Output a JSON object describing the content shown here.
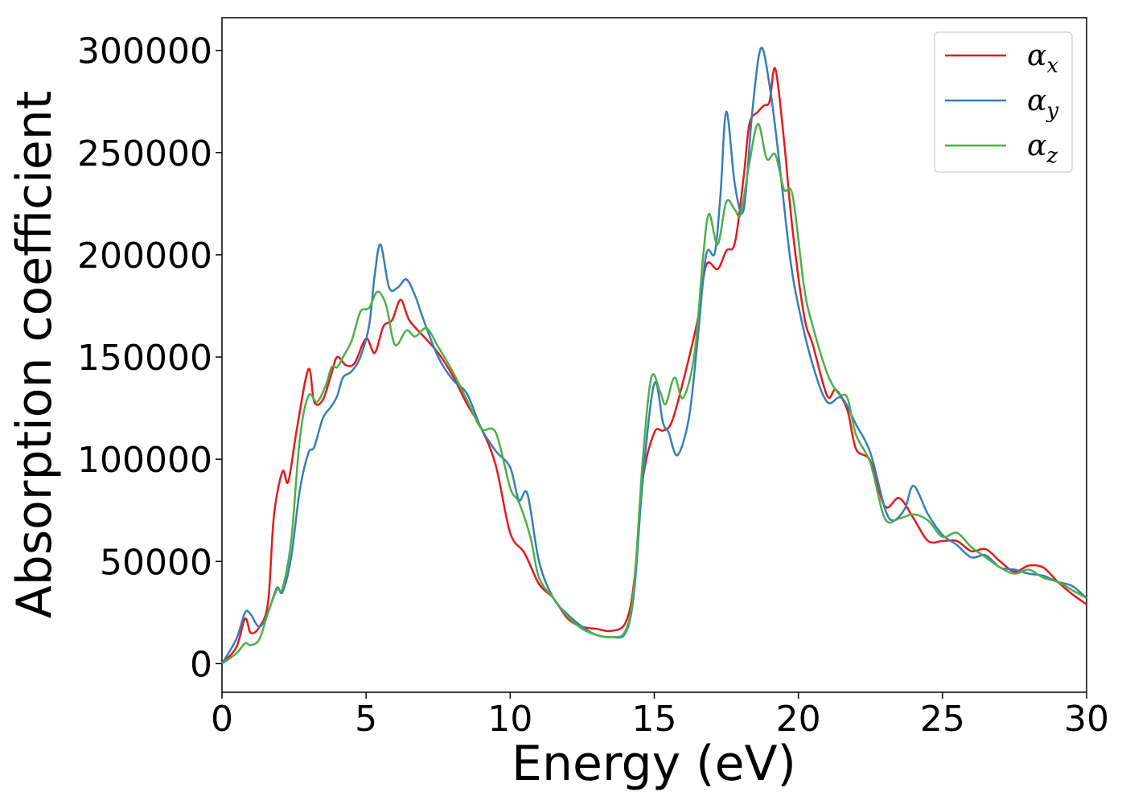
{
  "chart_data": {
    "type": "line",
    "title": "",
    "xlabel": "Energy (eV)",
    "ylabel": "Absorption coefficient",
    "xlim": [
      0,
      30
    ],
    "ylim": [
      -14000,
      316000
    ],
    "xticks": [
      0,
      5,
      10,
      15,
      20,
      25,
      30
    ],
    "yticks": [
      0,
      50000,
      100000,
      150000,
      200000,
      250000,
      300000
    ],
    "grid": false,
    "legend_position": "top-right",
    "series": [
      {
        "name": "α",
        "subscript": "x",
        "color": "#e41a1c",
        "points": [
          [
            0,
            0
          ],
          [
            0.5,
            8000
          ],
          [
            0.8,
            22000
          ],
          [
            1.0,
            15000
          ],
          [
            1.3,
            18000
          ],
          [
            1.6,
            30000
          ],
          [
            1.8,
            72000
          ],
          [
            2.1,
            94000
          ],
          [
            2.3,
            89000
          ],
          [
            2.6,
            115000
          ],
          [
            3.0,
            144000
          ],
          [
            3.2,
            128000
          ],
          [
            3.5,
            129000
          ],
          [
            3.8,
            142000
          ],
          [
            4.0,
            150000
          ],
          [
            4.3,
            146000
          ],
          [
            4.6,
            147000
          ],
          [
            5.0,
            159000
          ],
          [
            5.3,
            152000
          ],
          [
            5.6,
            165000
          ],
          [
            5.9,
            168000
          ],
          [
            6.2,
            178000
          ],
          [
            6.5,
            168000
          ],
          [
            7.0,
            160000
          ],
          [
            7.5,
            152000
          ],
          [
            8.0,
            141000
          ],
          [
            8.5,
            127000
          ],
          [
            9.0,
            115000
          ],
          [
            9.5,
            97000
          ],
          [
            10.0,
            64000
          ],
          [
            10.5,
            54000
          ],
          [
            11.0,
            39000
          ],
          [
            11.5,
            32000
          ],
          [
            12.0,
            22000
          ],
          [
            12.5,
            18000
          ],
          [
            13.0,
            17000
          ],
          [
            13.5,
            16000
          ],
          [
            14.0,
            20000
          ],
          [
            14.3,
            40000
          ],
          [
            14.6,
            90000
          ],
          [
            15.0,
            113000
          ],
          [
            15.3,
            114000
          ],
          [
            15.6,
            118000
          ],
          [
            16.0,
            138000
          ],
          [
            16.5,
            168000
          ],
          [
            16.8,
            195000
          ],
          [
            17.2,
            193000
          ],
          [
            17.5,
            202000
          ],
          [
            17.8,
            206000
          ],
          [
            18.1,
            238000
          ],
          [
            18.3,
            264000
          ],
          [
            18.6,
            270000
          ],
          [
            18.8,
            273000
          ],
          [
            19.0,
            275000
          ],
          [
            19.2,
            291000
          ],
          [
            19.5,
            256000
          ],
          [
            19.8,
            212000
          ],
          [
            20.2,
            170000
          ],
          [
            20.5,
            156000
          ],
          [
            21.0,
            131000
          ],
          [
            21.3,
            134000
          ],
          [
            21.7,
            124000
          ],
          [
            22.0,
            105000
          ],
          [
            22.5,
            99000
          ],
          [
            23.0,
            77000
          ],
          [
            23.5,
            81000
          ],
          [
            24.0,
            71000
          ],
          [
            24.5,
            60000
          ],
          [
            25.0,
            60000
          ],
          [
            25.5,
            60000
          ],
          [
            26.0,
            55000
          ],
          [
            26.5,
            56000
          ],
          [
            27.0,
            50000
          ],
          [
            27.5,
            45000
          ],
          [
            28.0,
            48000
          ],
          [
            28.5,
            47000
          ],
          [
            29.0,
            40000
          ],
          [
            29.5,
            34000
          ],
          [
            30.0,
            29000
          ]
        ]
      },
      {
        "name": "α",
        "subscript": "y",
        "color": "#377eb8",
        "points": [
          [
            0,
            0
          ],
          [
            0.5,
            12000
          ],
          [
            0.8,
            25000
          ],
          [
            1.0,
            24000
          ],
          [
            1.3,
            18000
          ],
          [
            1.6,
            25000
          ],
          [
            1.9,
            37000
          ],
          [
            2.1,
            35000
          ],
          [
            2.4,
            52000
          ],
          [
            2.7,
            85000
          ],
          [
            3.0,
            103000
          ],
          [
            3.2,
            106000
          ],
          [
            3.5,
            120000
          ],
          [
            3.8,
            126000
          ],
          [
            4.0,
            131000
          ],
          [
            4.2,
            140000
          ],
          [
            4.5,
            143000
          ],
          [
            4.8,
            150000
          ],
          [
            5.1,
            165000
          ],
          [
            5.3,
            190000
          ],
          [
            5.5,
            205000
          ],
          [
            5.8,
            184000
          ],
          [
            6.1,
            184000
          ],
          [
            6.4,
            188000
          ],
          [
            6.7,
            180000
          ],
          [
            7.0,
            168000
          ],
          [
            7.5,
            150000
          ],
          [
            8.0,
            139000
          ],
          [
            8.5,
            132000
          ],
          [
            9.0,
            115000
          ],
          [
            9.5,
            104000
          ],
          [
            10.0,
            96000
          ],
          [
            10.3,
            80000
          ],
          [
            10.6,
            83000
          ],
          [
            11.0,
            50000
          ],
          [
            11.5,
            32000
          ],
          [
            12.0,
            24000
          ],
          [
            12.5,
            18000
          ],
          [
            13.0,
            14000
          ],
          [
            13.5,
            13000
          ],
          [
            14.0,
            15000
          ],
          [
            14.3,
            35000
          ],
          [
            14.6,
            90000
          ],
          [
            15.0,
            137000
          ],
          [
            15.3,
            118000
          ],
          [
            15.5,
            113000
          ],
          [
            15.8,
            102000
          ],
          [
            16.2,
            120000
          ],
          [
            16.5,
            158000
          ],
          [
            16.8,
            200000
          ],
          [
            17.1,
            201000
          ],
          [
            17.3,
            230000
          ],
          [
            17.5,
            270000
          ],
          [
            17.8,
            234000
          ],
          [
            18.1,
            222000
          ],
          [
            18.4,
            270000
          ],
          [
            18.7,
            301000
          ],
          [
            19.0,
            283000
          ],
          [
            19.3,
            250000
          ],
          [
            19.7,
            200000
          ],
          [
            20.0,
            175000
          ],
          [
            20.5,
            146000
          ],
          [
            21.0,
            128000
          ],
          [
            21.5,
            130000
          ],
          [
            22.0,
            117000
          ],
          [
            22.5,
            103000
          ],
          [
            23.0,
            76000
          ],
          [
            23.3,
            70000
          ],
          [
            23.7,
            76000
          ],
          [
            24.0,
            87000
          ],
          [
            24.5,
            73000
          ],
          [
            25.0,
            63000
          ],
          [
            25.5,
            58000
          ],
          [
            26.0,
            52000
          ],
          [
            26.5,
            53000
          ],
          [
            27.0,
            47000
          ],
          [
            27.5,
            46000
          ],
          [
            28.0,
            44000
          ],
          [
            28.5,
            43000
          ],
          [
            29.0,
            40000
          ],
          [
            29.5,
            38000
          ],
          [
            30.0,
            32000
          ]
        ]
      },
      {
        "name": "α",
        "subscript": "z",
        "color": "#4daf4a",
        "points": [
          [
            0,
            0
          ],
          [
            0.5,
            5000
          ],
          [
            0.8,
            10000
          ],
          [
            1.0,
            9000
          ],
          [
            1.3,
            12000
          ],
          [
            1.6,
            25000
          ],
          [
            1.9,
            36000
          ],
          [
            2.1,
            37000
          ],
          [
            2.4,
            60000
          ],
          [
            2.7,
            110000
          ],
          [
            3.0,
            131000
          ],
          [
            3.3,
            128000
          ],
          [
            3.6,
            136000
          ],
          [
            3.8,
            145000
          ],
          [
            4.0,
            145000
          ],
          [
            4.2,
            150000
          ],
          [
            4.5,
            158000
          ],
          [
            4.8,
            172000
          ],
          [
            5.1,
            174000
          ],
          [
            5.4,
            182000
          ],
          [
            5.7,
            175000
          ],
          [
            6.0,
            156000
          ],
          [
            6.4,
            163000
          ],
          [
            6.7,
            160000
          ],
          [
            7.1,
            164000
          ],
          [
            7.5,
            155000
          ],
          [
            8.0,
            143000
          ],
          [
            8.5,
            129000
          ],
          [
            9.0,
            115000
          ],
          [
            9.5,
            113000
          ],
          [
            10.0,
            86000
          ],
          [
            10.3,
            79000
          ],
          [
            10.7,
            62000
          ],
          [
            11.0,
            42000
          ],
          [
            11.5,
            32000
          ],
          [
            12.0,
            23000
          ],
          [
            12.5,
            17000
          ],
          [
            13.0,
            14000
          ],
          [
            13.5,
            13000
          ],
          [
            14.0,
            16000
          ],
          [
            14.3,
            38000
          ],
          [
            14.6,
            100000
          ],
          [
            14.9,
            140000
          ],
          [
            15.2,
            133000
          ],
          [
            15.4,
            127000
          ],
          [
            15.7,
            140000
          ],
          [
            16.0,
            130000
          ],
          [
            16.4,
            152000
          ],
          [
            16.7,
            200000
          ],
          [
            16.9,
            220000
          ],
          [
            17.2,
            205000
          ],
          [
            17.5,
            226000
          ],
          [
            17.8,
            222000
          ],
          [
            18.0,
            220000
          ],
          [
            18.3,
            245000
          ],
          [
            18.6,
            264000
          ],
          [
            18.9,
            247000
          ],
          [
            19.2,
            249000
          ],
          [
            19.5,
            232000
          ],
          [
            19.8,
            229000
          ],
          [
            20.2,
            184000
          ],
          [
            20.5,
            165000
          ],
          [
            21.0,
            142000
          ],
          [
            21.4,
            132000
          ],
          [
            21.7,
            130000
          ],
          [
            22.0,
            112000
          ],
          [
            22.5,
            98000
          ],
          [
            23.0,
            71000
          ],
          [
            23.5,
            71000
          ],
          [
            24.0,
            73000
          ],
          [
            24.5,
            70000
          ],
          [
            25.0,
            62000
          ],
          [
            25.5,
            64000
          ],
          [
            26.0,
            57000
          ],
          [
            26.5,
            52000
          ],
          [
            27.0,
            47000
          ],
          [
            27.5,
            44000
          ],
          [
            28.0,
            46000
          ],
          [
            28.5,
            42000
          ],
          [
            29.0,
            40000
          ],
          [
            29.5,
            36000
          ],
          [
            30.0,
            32000
          ]
        ]
      }
    ]
  }
}
